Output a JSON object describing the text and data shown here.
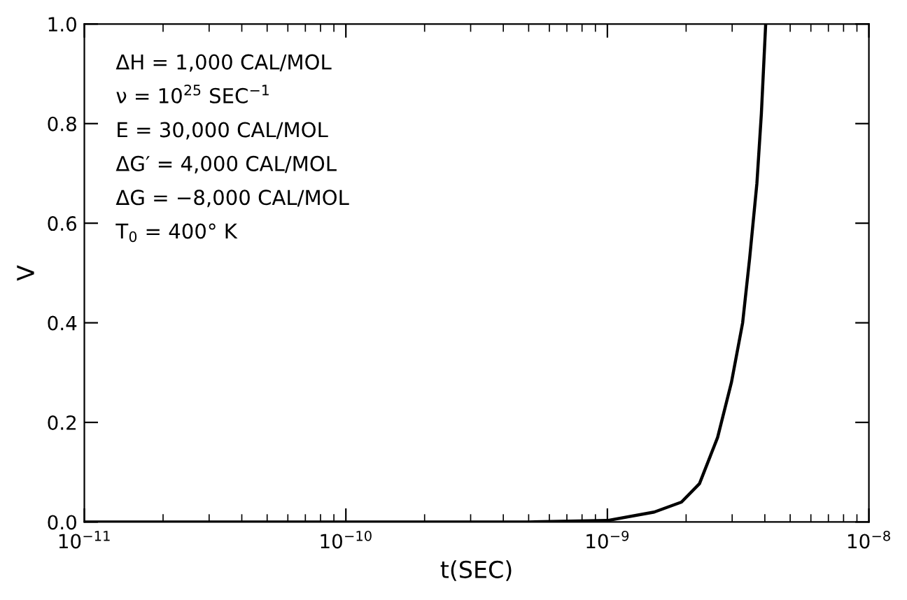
{
  "chart_data": {
    "type": "line",
    "xlabel": "t(SEC)",
    "ylabel": "V",
    "log": "x",
    "x": [
      1e-11,
      1e-10,
      5e-10,
      1e-09,
      1.51e-09,
      1.92e-09,
      2.25e-09,
      2.64e-09,
      2.98e-09,
      3.29e-09,
      3.5e-09,
      3.73e-09,
      3.88e-09,
      4.03e-09
    ],
    "series": [
      {
        "color": "#000000",
        "values": [
          0,
          0,
          0,
          0.003,
          0.02,
          0.04,
          0.077,
          0.17,
          0.28,
          0.4,
          0.53,
          0.68,
          0.82,
          1.0
        ]
      }
    ],
    "xlim": [
      1e-11,
      1e-08
    ],
    "xticks": [
      {
        "value": 1e-11,
        "label": "10$^{−11}$"
      },
      {
        "value": 1e-10,
        "label": "10$^{−10}$"
      },
      {
        "value": 1e-09,
        "label": "10$^{−9}$"
      },
      {
        "value": 1e-08,
        "label": "10$^{−8}$"
      }
    ],
    "ylim": [
      0,
      1
    ],
    "yticks": [
      {
        "value": 0,
        "label": "0.0"
      },
      {
        "value": 0.2,
        "label": "0.2"
      },
      {
        "value": 0.4,
        "label": "0.4"
      },
      {
        "value": 0.6,
        "label": "0.6"
      },
      {
        "value": 0.8,
        "label": "0.8"
      },
      {
        "value": 1,
        "label": "1.0"
      }
    ],
    "grid": false,
    "legend": false,
    "marker": "none",
    "line_style": "solid",
    "annotations": [
      "ΔH = 1,000 CAL/MOL",
      "ν = 10$^{25}$ SEC$^{−1}$",
      "E = 30,000 CAL/MOL",
      "ΔG′ = 4,000 CAL/MOL",
      "ΔG = −8,000 CAL/MOL",
      "T$_{0}$ = 400° K"
    ]
  }
}
